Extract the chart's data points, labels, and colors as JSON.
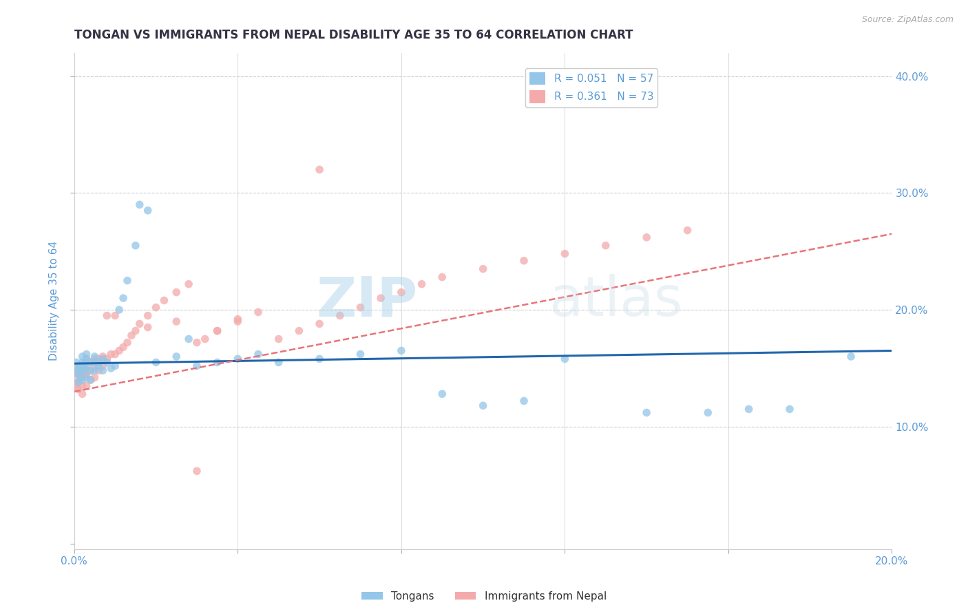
{
  "title": "TONGAN VS IMMIGRANTS FROM NEPAL DISABILITY AGE 35 TO 64 CORRELATION CHART",
  "source": "Source: ZipAtlas.com",
  "ylabel": "Disability Age 35 to 64",
  "xlim": [
    0.0,
    0.2
  ],
  "ylim": [
    -0.005,
    0.42
  ],
  "yticks": [
    0.0,
    0.1,
    0.2,
    0.3,
    0.4
  ],
  "xticks": [
    0.0,
    0.04,
    0.08,
    0.12,
    0.16,
    0.2
  ],
  "legend_r1": "R = 0.051   N = 57",
  "legend_r2": "R = 0.361   N = 73",
  "color_tongan": "#93c6e8",
  "color_nepal": "#f4aaaa",
  "color_line_tongan": "#2166ac",
  "color_line_nepal": "#e8747a",
  "watermark_zip": "ZIP",
  "watermark_atlas": "atlas",
  "background_color": "#ffffff",
  "grid_color": "#cccccc",
  "title_color": "#333344",
  "axis_color": "#5b9bd5",
  "tongan_x": [
    0.0005,
    0.0008,
    0.001,
    0.001,
    0.001,
    0.0012,
    0.0015,
    0.0015,
    0.002,
    0.002,
    0.002,
    0.002,
    0.0025,
    0.0025,
    0.003,
    0.003,
    0.003,
    0.003,
    0.004,
    0.004,
    0.004,
    0.005,
    0.005,
    0.005,
    0.006,
    0.006,
    0.007,
    0.007,
    0.008,
    0.009,
    0.01,
    0.011,
    0.012,
    0.013,
    0.015,
    0.016,
    0.018,
    0.02,
    0.025,
    0.028,
    0.03,
    0.035,
    0.04,
    0.045,
    0.05,
    0.06,
    0.07,
    0.08,
    0.09,
    0.1,
    0.11,
    0.12,
    0.14,
    0.155,
    0.165,
    0.175,
    0.19
  ],
  "tongan_y": [
    0.155,
    0.148,
    0.15,
    0.145,
    0.138,
    0.152,
    0.148,
    0.142,
    0.16,
    0.155,
    0.148,
    0.14,
    0.155,
    0.15,
    0.162,
    0.158,
    0.15,
    0.142,
    0.155,
    0.148,
    0.14,
    0.16,
    0.155,
    0.148,
    0.155,
    0.152,
    0.158,
    0.148,
    0.155,
    0.15,
    0.152,
    0.2,
    0.21,
    0.225,
    0.255,
    0.29,
    0.285,
    0.155,
    0.16,
    0.175,
    0.152,
    0.155,
    0.158,
    0.162,
    0.155,
    0.158,
    0.162,
    0.165,
    0.128,
    0.118,
    0.122,
    0.158,
    0.112,
    0.112,
    0.115,
    0.115,
    0.16
  ],
  "nepal_x": [
    0.0003,
    0.0005,
    0.0005,
    0.0008,
    0.001,
    0.001,
    0.001,
    0.001,
    0.0012,
    0.0015,
    0.0015,
    0.002,
    0.002,
    0.002,
    0.002,
    0.0025,
    0.0025,
    0.003,
    0.003,
    0.003,
    0.003,
    0.004,
    0.004,
    0.004,
    0.005,
    0.005,
    0.005,
    0.006,
    0.006,
    0.007,
    0.007,
    0.008,
    0.009,
    0.01,
    0.011,
    0.012,
    0.013,
    0.014,
    0.015,
    0.016,
    0.018,
    0.02,
    0.022,
    0.025,
    0.028,
    0.03,
    0.032,
    0.035,
    0.04,
    0.045,
    0.05,
    0.055,
    0.06,
    0.065,
    0.07,
    0.075,
    0.08,
    0.085,
    0.09,
    0.1,
    0.11,
    0.12,
    0.13,
    0.14,
    0.15,
    0.06,
    0.008,
    0.01,
    0.018,
    0.025,
    0.03,
    0.035,
    0.04
  ],
  "nepal_y": [
    0.138,
    0.145,
    0.135,
    0.148,
    0.152,
    0.145,
    0.138,
    0.132,
    0.148,
    0.152,
    0.142,
    0.148,
    0.142,
    0.135,
    0.128,
    0.152,
    0.145,
    0.148,
    0.158,
    0.145,
    0.135,
    0.155,
    0.148,
    0.14,
    0.158,
    0.15,
    0.142,
    0.158,
    0.148,
    0.16,
    0.152,
    0.158,
    0.162,
    0.162,
    0.165,
    0.168,
    0.172,
    0.178,
    0.182,
    0.188,
    0.195,
    0.202,
    0.208,
    0.215,
    0.222,
    0.172,
    0.175,
    0.182,
    0.19,
    0.198,
    0.175,
    0.182,
    0.188,
    0.195,
    0.202,
    0.21,
    0.215,
    0.222,
    0.228,
    0.235,
    0.242,
    0.248,
    0.255,
    0.262,
    0.268,
    0.32,
    0.195,
    0.195,
    0.185,
    0.19,
    0.062,
    0.182,
    0.192
  ]
}
